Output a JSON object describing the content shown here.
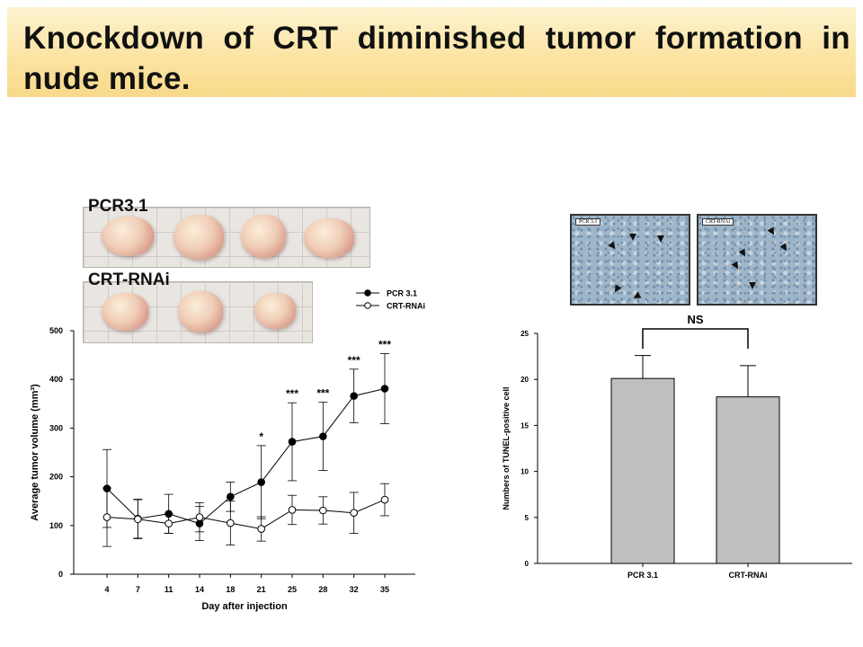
{
  "title": "Knockdown of CRT diminished tumor formation in nude mice.",
  "photos": {
    "label_1": "PCR3.1",
    "label_2": "CRT-RNAi"
  },
  "micrographs": {
    "label_1": "PCR 3.1",
    "label_2": "CRT-RNAi"
  },
  "chart_data": [
    {
      "type": "line",
      "xlabel": "Day after injection",
      "ylabel": "Average tumor volume (mm³)",
      "ylim": [
        0,
        500
      ],
      "yticks": [
        "0",
        "100",
        "200",
        "300",
        "400",
        "500"
      ],
      "categories": [
        "4",
        "7",
        "11",
        "14",
        "18",
        "21",
        "25",
        "28",
        "32",
        "35"
      ],
      "series": [
        {
          "name": "PCR 3.1",
          "marker": "filled",
          "values": [
            176,
            114,
            124,
            104,
            159,
            189,
            272,
            283,
            366,
            381
          ],
          "err": [
            80,
            40,
            40,
            35,
            30,
            75,
            80,
            70,
            55,
            72
          ]
        },
        {
          "name": "CRT-RNAi",
          "marker": "open",
          "values": [
            117,
            113,
            104,
            117,
            105,
            93,
            132,
            131,
            126,
            153
          ],
          "err": [
            60,
            40,
            20,
            30,
            45,
            25,
            30,
            28,
            42,
            33
          ]
        }
      ],
      "annotations": [
        "",
        "",
        "",
        "",
        "",
        "*",
        "***",
        "***",
        "***",
        "***"
      ],
      "legend_position": "top-right"
    },
    {
      "type": "bar",
      "ylabel": "Numbers of TUNEL-positive cell",
      "ylim": [
        0,
        25
      ],
      "yticks": [
        "0",
        "5",
        "10",
        "15",
        "20",
        "25"
      ],
      "categories": [
        "PCR 3.1",
        "CRT-RNAi"
      ],
      "values": [
        20.1,
        18.1
      ],
      "err": [
        2.5,
        3.4
      ],
      "annotation": "NS",
      "bar_color": "#bfbfbf"
    }
  ]
}
